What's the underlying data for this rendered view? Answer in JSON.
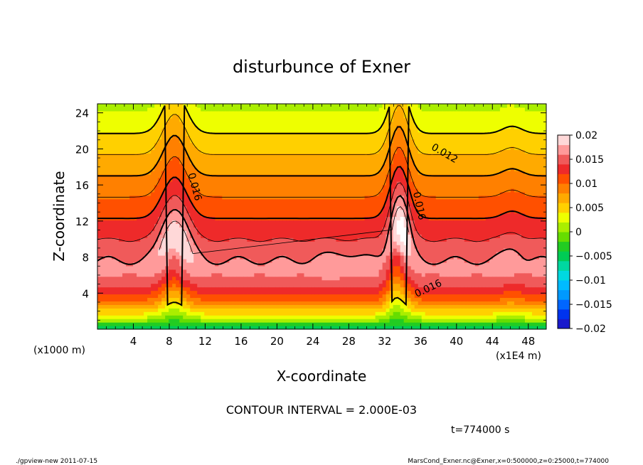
{
  "chart_data": {
    "type": "heatmap",
    "title": "disturbunce of Exner",
    "xlabel": "X-coordinate",
    "ylabel": "Z-coordinate",
    "x_unit": "(x1E4 m)",
    "y_unit": "(x1000 m)",
    "xlim": [
      0,
      50
    ],
    "ylim": [
      0,
      25
    ],
    "x_ticks": [
      4,
      8,
      12,
      16,
      20,
      24,
      28,
      32,
      36,
      40,
      44,
      48
    ],
    "x_tick_labels": [
      "4",
      "8",
      "12",
      "16",
      "20",
      "24",
      "28",
      "32",
      "36",
      "40",
      "44",
      "48"
    ],
    "y_ticks": [
      4,
      8,
      12,
      16,
      20,
      24
    ],
    "y_tick_labels": [
      "4",
      "8",
      "12",
      "16",
      "20",
      "24"
    ],
    "contour_interval_text": "CONTOUR INTERVAL = 2.000E-03",
    "contour_labels": [
      {
        "text": "0.016",
        "x": 10.5,
        "z": 15.7,
        "angle": 75
      },
      {
        "text": "0.012",
        "x": 38.5,
        "z": 19.2,
        "angle": 30
      },
      {
        "text": "0.016",
        "x": 35.5,
        "z": 13.6,
        "angle": 78
      },
      {
        "text": "0.016",
        "x": 37.0,
        "z": 4.2,
        "angle": -25
      }
    ],
    "colorbar": {
      "ticks": [
        0.02,
        0.015,
        0.01,
        0.005,
        0,
        -0.005,
        -0.01,
        -0.015,
        -0.02
      ],
      "tick_labels": [
        "0.02",
        "0.015",
        "0.01",
        "0.005",
        "0",
        "−0.005",
        "−0.01",
        "−0.015",
        "−0.02"
      ],
      "levels": [
        -0.02,
        -0.018,
        -0.016,
        -0.014,
        -0.012,
        -0.01,
        -0.008,
        -0.006,
        -0.004,
        -0.002,
        0,
        0.002,
        0.004,
        0.006,
        0.008,
        0.01,
        0.012,
        0.014,
        0.016,
        0.018,
        0.02
      ],
      "colors": [
        "#5500aa",
        "#1a1acc",
        "#0033ee",
        "#0066ff",
        "#0099ff",
        "#00bbff",
        "#00d8e0",
        "#00d8a0",
        "#00cc55",
        "#22cc22",
        "#66dd00",
        "#aaee00",
        "#eeff00",
        "#ffd000",
        "#ffaa00",
        "#ff8000",
        "#ff5000",
        "#ee2a2a",
        "#f05a5a",
        "#ff9a9a",
        "#ffd8d8",
        "#ffffff"
      ]
    },
    "field_model": {
      "description": "Exner disturbance field; decreases with height above ~7 km, with two strong mountain-wave peaks near x=8.5 and x=33.5",
      "peaks": [
        {
          "x": 8.7,
          "z": 7.4,
          "amplitude": 0.0055,
          "width_x": 1.6,
          "width_z": 4.5
        },
        {
          "x": 33.8,
          "z": 8.0,
          "amplitude": 0.007,
          "width_x": 0.9,
          "width_z": 5.5
        },
        {
          "x": 27.0,
          "z": 7.3,
          "amplitude": 0.0012,
          "width_x": 2.5,
          "width_z": 1.5
        },
        {
          "x": 46.2,
          "z": 7.3,
          "amplitude": 0.0015,
          "width_x": 1.0,
          "width_z": 1.5
        }
      ],
      "uplift": [
        {
          "x": 8.6,
          "amount": 4.5,
          "width": 1.8
        },
        {
          "x": 33.6,
          "amount": 5.5,
          "width": 1.4
        },
        {
          "x": 46.2,
          "amount": 0.8,
          "width": 1.5
        }
      ]
    }
  },
  "footer": {
    "time": "t=774000 s",
    "program": "./gpview-new   2011-07-15",
    "source": "MarsCond_Exner.nc@Exner,x=0:500000,z=0:25000,t=774000"
  }
}
